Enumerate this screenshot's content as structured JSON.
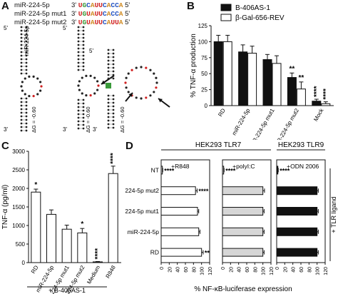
{
  "panels": {
    "A": "A",
    "B": "B",
    "C": "C",
    "D": "D"
  },
  "panelA": {
    "sequences": [
      {
        "name": "miR-224-5p",
        "dir3": "3'",
        "seq": "UGCAUUCACCA",
        "dir5": "5'"
      },
      {
        "name": "miR-224-5p mut1",
        "dir3": "3'",
        "seq": "UGUAUUCACCA",
        "dir5": "5'"
      },
      {
        "name": "miR-224-5p mut2",
        "dir3": "3'",
        "seq": "UGUAUUCAUUA",
        "dir5": "5'"
      }
    ],
    "structures": [
      {
        "name": "miR-224-5p",
        "dG": "ΔG = -0.60",
        "top": "5'",
        "bottom": "3'"
      },
      {
        "name": "",
        "dG": "ΔG = -0.60",
        "top": "5'",
        "bottom": "3'"
      },
      {
        "name": "",
        "dG": "ΔG = -0.60",
        "top": "5'",
        "bottom": "3'"
      }
    ]
  },
  "colors": {
    "black": "#111111",
    "white": "#ffffff",
    "grey": "#d6d6d6",
    "seqGreen": "#3a9a3a",
    "seqRed": "#d02020",
    "seqOrange": "#d08a20",
    "seqBlue": "#2050c0"
  },
  "chart_data": [
    {
      "panel": "B",
      "type": "bar",
      "ylabel": "% TNF-α production",
      "ylim": [
        0,
        125
      ],
      "yticks": [
        0,
        25,
        50,
        75,
        100,
        125
      ],
      "categories": [
        "RD",
        "miR-224-5p",
        "miR-224-5p mut1",
        "miR-224-5p mut2",
        "Mock"
      ],
      "series": [
        {
          "name": "B-406AS-1",
          "color": "#111111",
          "values": [
            100,
            84,
            72,
            44,
            7
          ],
          "errors": [
            10,
            11,
            8,
            7,
            3
          ]
        },
        {
          "name": "β-Gal-656-REV",
          "color": "#ffffff",
          "values": [
            100,
            82,
            66,
            26,
            3
          ],
          "errors": [
            10,
            11,
            12,
            11,
            3
          ]
        }
      ],
      "annotations": [
        {
          "category": "miR-224-5p mut2",
          "series": "B-406AS-1",
          "text": "**"
        },
        {
          "category": "miR-224-5p mut2",
          "series": "β-Gal-656-REV",
          "text": "**"
        },
        {
          "category": "Mock",
          "series": "B-406AS-1",
          "text": "****"
        },
        {
          "category": "Mock",
          "series": "β-Gal-656-REV",
          "text": "****"
        }
      ]
    },
    {
      "panel": "C",
      "type": "bar",
      "ylabel": "TNF-α (pg/ml)",
      "ylim": [
        0,
        3000
      ],
      "yticks": [
        0,
        500,
        1000,
        1500,
        2000,
        2500,
        3000
      ],
      "categories": [
        "RD",
        "miR-224-5p",
        "miR-224-5p mut1",
        "miR-224-5p mut2",
        "Medium",
        "R848"
      ],
      "series": [
        {
          "name": "",
          "color": "#ffffff",
          "values": [
            1900,
            1300,
            900,
            800,
            20,
            2400
          ],
          "errors": [
            80,
            120,
            110,
            120,
            10,
            200
          ]
        }
      ],
      "annotations": [
        {
          "category": "RD",
          "text": "*"
        },
        {
          "category": "miR-224-5p mut2",
          "text": "*"
        },
        {
          "category": "Medium",
          "text": "****"
        },
        {
          "category": "R848",
          "text": "****"
        }
      ],
      "footer": "+ B-406AS-1"
    },
    {
      "panel": "D",
      "type": "bar",
      "orientation": "horizontal",
      "xlabel": "% NF-κB-luciferase expression",
      "xlim": [
        0,
        120
      ],
      "xticks": [
        0,
        20,
        40,
        60,
        80,
        100,
        120
      ],
      "categories": [
        "NT",
        "miR-224-5p mut2",
        "miR-224-5p mut1",
        "miR-224-5p",
        "RD"
      ],
      "groups": [
        {
          "header": "HEK293 TLR7",
          "ligand": "+R848",
          "color": "#ffffff",
          "values": [
            3,
            85,
            90,
            93,
            100
          ],
          "errors": [
            1,
            4,
            3,
            3,
            4
          ],
          "annotations": [
            {
              "category": "NT",
              "text": "****"
            },
            {
              "category": "miR-224-5p mut2",
              "text": "****"
            },
            {
              "category": "RD",
              "text": "**"
            }
          ]
        },
        {
          "header": "HEK293 TLR7",
          "ligand": "+polyI:C",
          "color": "#d6d6d6",
          "values": [
            3,
            100,
            100,
            100,
            100
          ],
          "errors": [
            1,
            4,
            3,
            3,
            3
          ],
          "annotations": [
            {
              "category": "NT",
              "text": "****"
            }
          ]
        },
        {
          "header": "HEK293 TLR9",
          "ligand": "+ODN 2006",
          "color": "#111111",
          "values": [
            3,
            100,
            100,
            100,
            100
          ],
          "errors": [
            1,
            3,
            3,
            3,
            3
          ],
          "annotations": [
            {
              "category": "NT",
              "text": "****"
            }
          ]
        }
      ],
      "side_label": "+ TLR ligand"
    }
  ]
}
